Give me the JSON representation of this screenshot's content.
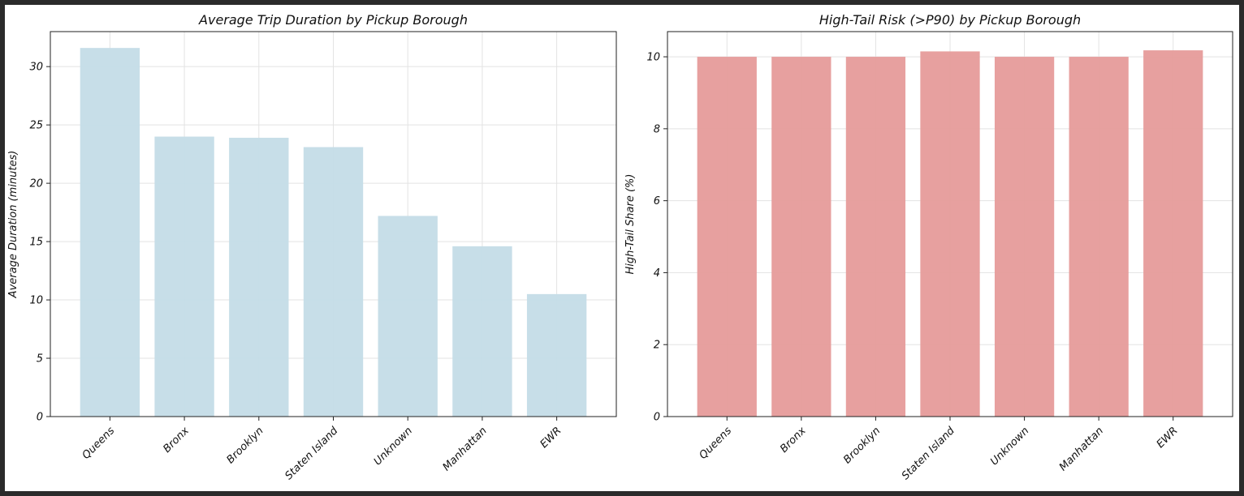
{
  "chart_data": [
    {
      "type": "bar",
      "title": "Average Trip Duration by Pickup Borough",
      "xlabel": "",
      "ylabel": "Average Duration (minutes)",
      "categories": [
        "Queens",
        "Bronx",
        "Brooklyn",
        "Staten Island",
        "Unknown",
        "Manhattan",
        "EWR"
      ],
      "values": [
        31.6,
        24.0,
        23.9,
        23.1,
        17.2,
        14.6,
        10.5
      ],
      "ylim": [
        0,
        33
      ],
      "yticks": [
        0,
        5,
        10,
        15,
        20,
        25,
        30
      ],
      "grid": true,
      "color": "#c5dde7"
    },
    {
      "type": "bar",
      "title": "High-Tail Risk (>P90) by Pickup Borough",
      "xlabel": "",
      "ylabel": "High-Tail Share (%)",
      "categories": [
        "Queens",
        "Bronx",
        "Brooklyn",
        "Staten Island",
        "Unknown",
        "Manhattan",
        "EWR"
      ],
      "values": [
        10.0,
        10.0,
        10.0,
        10.15,
        10.0,
        10.0,
        10.18
      ],
      "ylim": [
        0,
        10.7
      ],
      "yticks": [
        0,
        2,
        4,
        6,
        8,
        10
      ],
      "grid": true,
      "color": "#e69d9c"
    }
  ]
}
